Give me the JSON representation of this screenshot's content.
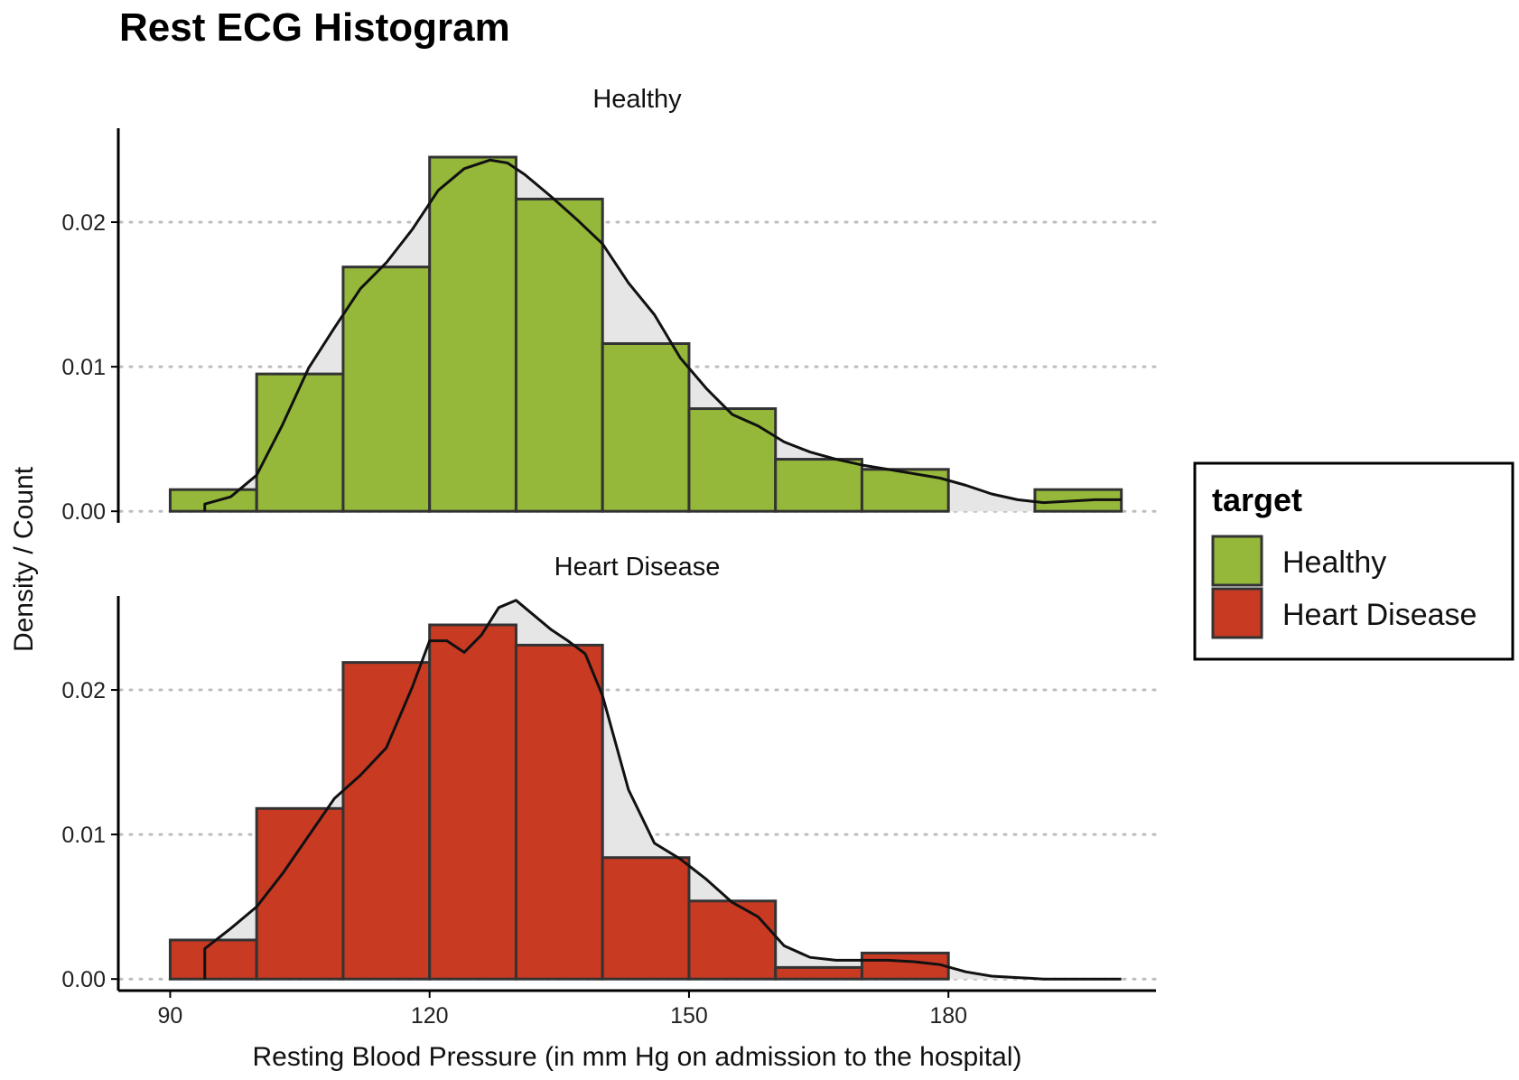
{
  "chart_data": {
    "type": "bar",
    "title": "Rest ECG Histogram",
    "xlabel": "Resting Blood Pressure (in mm Hg on admission to the hospital)",
    "ylabel": "Density / Count",
    "xlim": [
      84,
      204
    ],
    "ylim": [
      -0.0008,
      0.0265
    ],
    "x_ticks": [
      "90",
      "120",
      "150",
      "180"
    ],
    "x_tick_values": [
      90,
      120,
      150,
      180
    ],
    "y_ticks": [
      "0.00",
      "0.01",
      "0.02"
    ],
    "y_tick_values": [
      0,
      0.01,
      0.02
    ],
    "grid": "horizontal dotted",
    "legend": {
      "title": "target",
      "position": "right"
    },
    "bin_edges": [
      90,
      100,
      110,
      120,
      130,
      140,
      150,
      160,
      170,
      180,
      190,
      200
    ],
    "panels": [
      {
        "name": "Healthy",
        "color": "#95B83A",
        "histogram_density": [
          0.0015,
          0.0095,
          0.0169,
          0.0245,
          0.0216,
          0.0116,
          0.0071,
          0.0036,
          0.0029,
          0.0,
          0.0015
        ],
        "density_curve": {
          "x": [
            94,
            97,
            100,
            103,
            106,
            109,
            112,
            115,
            118,
            121,
            124,
            127,
            129,
            131,
            134,
            137,
            140,
            143,
            146,
            149,
            152,
            155,
            158,
            161,
            164,
            167,
            170,
            173,
            176,
            179,
            182,
            185,
            188,
            191,
            194,
            197,
            200
          ],
          "y": [
            0.0005,
            0.001,
            0.0025,
            0.006,
            0.0099,
            0.0127,
            0.0154,
            0.0172,
            0.0195,
            0.0222,
            0.0237,
            0.0243,
            0.0241,
            0.0233,
            0.0218,
            0.0202,
            0.0185,
            0.0158,
            0.0136,
            0.0106,
            0.0085,
            0.0067,
            0.0059,
            0.0048,
            0.0041,
            0.0036,
            0.0032,
            0.0029,
            0.0026,
            0.0023,
            0.0018,
            0.0012,
            0.0008,
            0.0006,
            0.0007,
            0.0008,
            0.0008
          ]
        }
      },
      {
        "name": "Heart Disease",
        "color": "#C93A23",
        "histogram_density": [
          0.0027,
          0.0118,
          0.0219,
          0.0245,
          0.0231,
          0.0084,
          0.0054,
          0.0008,
          0.0018,
          0.0,
          0.0
        ],
        "density_curve": {
          "x": [
            94,
            97,
            100,
            103,
            106,
            109,
            112,
            115,
            118,
            120,
            122,
            124,
            126,
            128,
            130,
            132,
            134,
            136,
            138,
            140,
            143,
            146,
            149,
            152,
            155,
            158,
            161,
            164,
            167,
            170,
            173,
            176,
            179,
            182,
            185,
            188,
            191,
            194,
            197,
            200
          ],
          "y": [
            0.0021,
            0.0035,
            0.005,
            0.0073,
            0.0099,
            0.0125,
            0.0141,
            0.016,
            0.0202,
            0.0234,
            0.0234,
            0.0226,
            0.0238,
            0.0257,
            0.0262,
            0.0252,
            0.0242,
            0.0234,
            0.0225,
            0.0196,
            0.0131,
            0.0094,
            0.0083,
            0.0069,
            0.0053,
            0.0043,
            0.0023,
            0.0015,
            0.0013,
            0.0013,
            0.0013,
            0.0012,
            0.001,
            0.0005,
            0.0002,
            0.0001,
            0.0,
            0.0,
            0.0,
            0.0
          ]
        }
      }
    ]
  }
}
